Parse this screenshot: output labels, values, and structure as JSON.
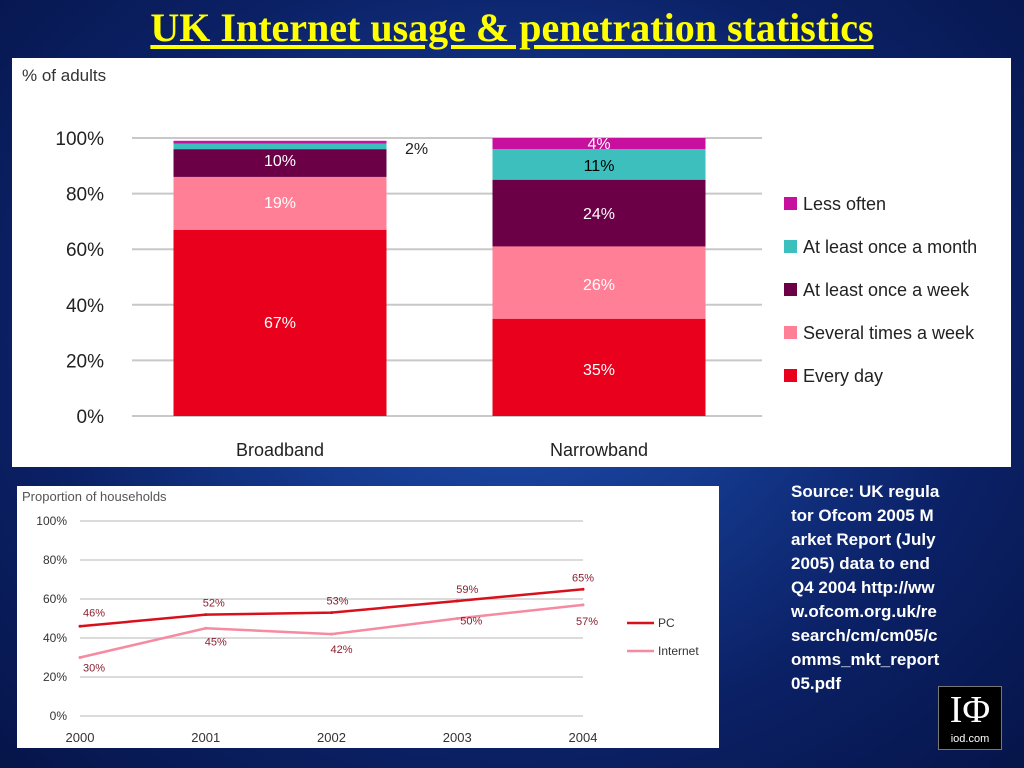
{
  "page": {
    "title": "UK Internet usage & penetration statistics",
    "source_lines": [
      "Source: UK regulator Ofcom 2005 Market Report (July 2005) data to end Q4 2004 http://www.ofcom.org.uk/research/cm/cm05/comms_mkt_report05.pdf"
    ],
    "logo_mark": "IΦ",
    "logo_site": "iod.com"
  },
  "chart_data": [
    {
      "type": "bar",
      "stacked": true,
      "title": "% of adults",
      "categories": [
        "Broadband",
        "Narrowband"
      ],
      "ylim": [
        0,
        100
      ],
      "yticks": [
        "0%",
        "20%",
        "40%",
        "60%",
        "80%",
        "100%"
      ],
      "grid": true,
      "legend_position": "right",
      "series": [
        {
          "name": "Every day",
          "color": "#e8001c",
          "values": [
            67,
            35
          ],
          "labels": [
            "67%",
            "35%"
          ],
          "label_color": "#ffffff"
        },
        {
          "name": "Several times a week",
          "color": "#ff7f96",
          "values": [
            19,
            26
          ],
          "labels": [
            "19%",
            "26%"
          ],
          "label_color": "#ffffff"
        },
        {
          "name": "At least once a week",
          "color": "#6b0047",
          "values": [
            10,
            24
          ],
          "labels": [
            "10%",
            "24%"
          ],
          "label_color": "#ffffff"
        },
        {
          "name": "At least once a month",
          "color": "#3dbfbd",
          "values": [
            2,
            11
          ],
          "labels": [
            "2%",
            "11%"
          ],
          "label_color": "#000000"
        },
        {
          "name": "Less often",
          "color": "#c8109f",
          "values": [
            1,
            4
          ],
          "labels": [
            "",
            "4%"
          ],
          "label_color": "#ffffff"
        }
      ]
    },
    {
      "type": "line",
      "title": "Proportion of households",
      "x": [
        "2000",
        "2001",
        "2002",
        "2003",
        "2004"
      ],
      "ylim": [
        0,
        100
      ],
      "yticks": [
        "0%",
        "20%",
        "40%",
        "60%",
        "80%",
        "100%"
      ],
      "grid": true,
      "legend_position": "right",
      "series": [
        {
          "name": "PC",
          "color": "#d8101c",
          "values": [
            46,
            52,
            53,
            59,
            65
          ],
          "labels": [
            "46%",
            "52%",
            "53%",
            "59%",
            "65%"
          ]
        },
        {
          "name": "Internet",
          "color": "#f58aa0",
          "values": [
            30,
            45,
            42,
            50,
            57
          ],
          "labels": [
            "30%",
            "45%",
            "42%",
            "50%",
            "57%"
          ]
        }
      ]
    }
  ]
}
